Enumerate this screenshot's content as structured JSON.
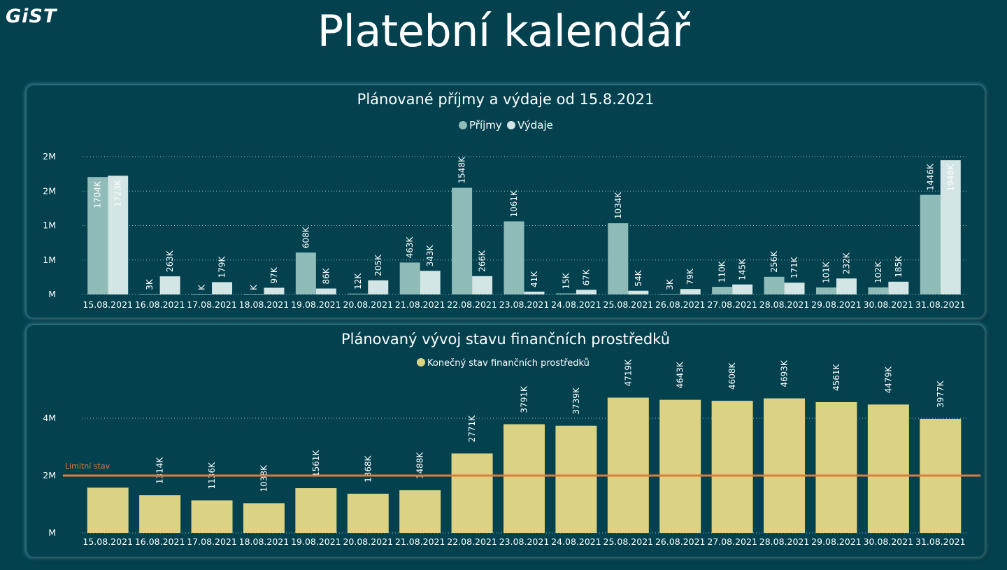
{
  "header": {
    "logo": "GiST",
    "title": "Platební kalendář"
  },
  "colors": {
    "background": "#03414f",
    "income": "#8fbcb9",
    "expense": "#d3e5e4",
    "balance": "#dcd283",
    "limit": "#e07a3a"
  },
  "chart_data": [
    {
      "type": "bar",
      "title": "Plánované příjmy a výdaje od 15.8.2021",
      "legend_position": "top-center",
      "categories": [
        "15.08.2021",
        "16.08.2021",
        "17.08.2021",
        "18.08.2021",
        "19.08.2021",
        "20.08.2021",
        "21.08.2021",
        "22.08.2021",
        "23.08.2021",
        "24.08.2021",
        "25.08.2021",
        "26.08.2021",
        "27.08.2021",
        "28.08.2021",
        "29.08.2021",
        "30.08.2021",
        "31.08.2021"
      ],
      "series": [
        {
          "name": "Příjmy",
          "values": [
            1704,
            3,
            0,
            0,
            608,
            12,
            463,
            1548,
            1061,
            15,
            1034,
            3,
            110,
            256,
            101,
            102,
            1446
          ],
          "labels": [
            "1704K",
            "3K",
            "K",
            "K",
            "608K",
            "12K",
            "463K",
            "1548K",
            "1061K",
            "15K",
            "1034K",
            "3K",
            "110K",
            "256K",
            "101K",
            "102K",
            "1446K"
          ]
        },
        {
          "name": "Výdaje",
          "values": [
            1723,
            263,
            179,
            97,
            86,
            205,
            343,
            266,
            41,
            67,
            54,
            79,
            145,
            171,
            232,
            185,
            1948
          ],
          "labels": [
            "1723K",
            "263K",
            "179K",
            "97K",
            "86K",
            "205K",
            "343K",
            "266K",
            "41K",
            "67K",
            "54K",
            "79K",
            "145K",
            "171K",
            "232K",
            "185K",
            "1948K"
          ]
        }
      ],
      "ylim": [
        0,
        2000
      ],
      "yticks": [
        {
          "value": 0,
          "label": "M"
        },
        {
          "value": 500,
          "label": "1M"
        },
        {
          "value": 1000,
          "label": "1M"
        },
        {
          "value": 1500,
          "label": "2M"
        },
        {
          "value": 2000,
          "label": "2M"
        }
      ],
      "grid": true
    },
    {
      "type": "bar",
      "title": "Plánovaný vývoj stavu finančních prostředků",
      "legend_position": "top-center",
      "categories": [
        "15.08.2021",
        "16.08.2021",
        "17.08.2021",
        "18.08.2021",
        "19.08.2021",
        "20.08.2021",
        "21.08.2021",
        "22.08.2021",
        "23.08.2021",
        "24.08.2021",
        "25.08.2021",
        "26.08.2021",
        "27.08.2021",
        "28.08.2021",
        "29.08.2021",
        "30.08.2021",
        "31.08.2021"
      ],
      "series": [
        {
          "name": "Konečný stav finančních prostředků",
          "values": [
            1580,
            1314,
            1136,
            1038,
            1561,
            1368,
            1488,
            2771,
            3791,
            3739,
            4719,
            4643,
            4608,
            4693,
            4561,
            4479,
            3977
          ],
          "labels": [
            "",
            "1314K",
            "1136K",
            "1038K",
            "1561K",
            "1368K",
            "1488K",
            "2771K",
            "3791K",
            "3739K",
            "4719K",
            "4643K",
            "4608K",
            "4693K",
            "4561K",
            "4479K",
            "3977K"
          ]
        }
      ],
      "reference_line": {
        "label": "Limitní stav",
        "value": 2000
      },
      "ylim": [
        0,
        5000
      ],
      "yticks": [
        {
          "value": 0,
          "label": "M"
        },
        {
          "value": 2000,
          "label": "2M"
        },
        {
          "value": 4000,
          "label": "4M"
        }
      ],
      "grid": true
    }
  ]
}
